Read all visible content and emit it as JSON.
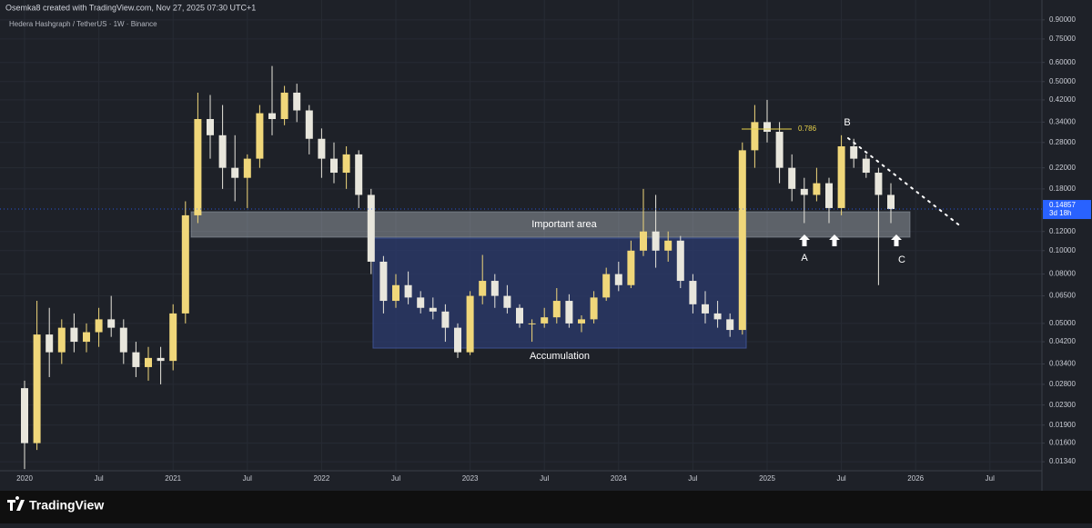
{
  "header": {
    "credit": "Osemka8 created with TradingView.com, Nov 27, 2025 07:30 UTC+1",
    "brand": "TradingView"
  },
  "chart_data": {
    "type": "candlestick",
    "title": "Hedera Hashgraph / TetherUS · 1W · Binance",
    "categories": [
      "2020",
      null,
      null,
      null,
      null,
      null,
      "Jul",
      null,
      null,
      null,
      null,
      null,
      "2021",
      null,
      null,
      null,
      null,
      null,
      "Jul",
      null,
      null,
      null,
      null,
      null,
      "2022",
      null,
      null,
      null,
      null,
      null,
      "Jul",
      null,
      null,
      null,
      null,
      null,
      "2023",
      null,
      null,
      null,
      null,
      null,
      "Jul",
      null,
      null,
      null,
      null,
      null,
      "2024",
      null,
      null,
      null,
      null,
      null,
      "Jul",
      null,
      null,
      null,
      null,
      null,
      "2025",
      null,
      null,
      null,
      null,
      null,
      "Jul",
      null,
      null,
      null,
      null,
      null,
      "2026",
      null,
      null,
      null,
      null,
      null,
      "Jul",
      null,
      null,
      null,
      null
    ],
    "open": [
      0.027,
      0.016,
      0.045,
      0.038,
      0.048,
      0.042,
      0.046,
      0.052,
      0.048,
      0.038,
      0.033,
      0.036,
      0.035,
      0.055,
      0.14,
      0.35,
      0.3,
      0.22,
      0.2,
      0.24,
      0.37,
      0.35,
      0.45,
      0.38,
      0.29,
      0.24,
      0.21,
      0.25,
      0.17,
      0.09,
      0.062,
      0.072,
      0.064,
      0.058,
      0.056,
      0.048,
      0.038,
      0.065,
      0.075,
      0.065,
      0.058,
      0.05,
      0.05,
      0.053,
      0.062,
      0.05,
      0.052,
      0.064,
      0.08,
      0.072,
      0.1,
      0.12,
      0.1,
      0.11,
      0.075,
      0.06,
      0.055,
      0.052,
      0.047,
      0.26,
      0.34,
      0.31,
      0.22,
      0.18,
      0.17,
      0.19,
      0.15,
      0.27,
      0.24,
      0.21,
      0.17,
      null,
      null,
      null,
      null,
      null,
      null,
      null,
      null,
      null,
      null,
      null,
      null
    ],
    "high": [
      0.029,
      0.062,
      0.058,
      0.052,
      0.055,
      0.05,
      0.058,
      0.065,
      0.052,
      0.042,
      0.04,
      0.04,
      0.06,
      0.16,
      0.45,
      0.44,
      0.4,
      0.3,
      0.25,
      0.4,
      0.58,
      0.48,
      0.49,
      0.4,
      0.32,
      0.28,
      0.27,
      0.26,
      0.18,
      0.095,
      0.08,
      0.082,
      0.068,
      0.064,
      0.06,
      0.05,
      0.068,
      0.096,
      0.08,
      0.072,
      0.06,
      0.052,
      0.058,
      0.07,
      0.066,
      0.054,
      0.068,
      0.085,
      0.09,
      0.11,
      0.18,
      0.17,
      0.12,
      0.115,
      0.08,
      0.068,
      0.062,
      0.055,
      0.28,
      0.4,
      0.42,
      0.34,
      0.25,
      0.2,
      0.22,
      0.2,
      0.3,
      0.29,
      0.25,
      0.22,
      0.19,
      null,
      null,
      null,
      null,
      null,
      null,
      null,
      null,
      null,
      null,
      null,
      null
    ],
    "low": [
      0.0125,
      0.015,
      0.03,
      0.034,
      0.038,
      0.038,
      0.04,
      0.044,
      0.034,
      0.03,
      0.029,
      0.028,
      0.032,
      0.05,
      0.13,
      0.24,
      0.18,
      0.16,
      0.15,
      0.22,
      0.3,
      0.33,
      0.34,
      0.25,
      0.2,
      0.19,
      0.18,
      0.15,
      0.08,
      0.055,
      0.058,
      0.06,
      0.055,
      0.052,
      0.042,
      0.036,
      0.037,
      0.06,
      0.058,
      0.055,
      0.048,
      0.042,
      0.048,
      0.05,
      0.048,
      0.046,
      0.05,
      0.062,
      0.068,
      0.07,
      0.095,
      0.085,
      0.09,
      0.07,
      0.055,
      0.05,
      0.048,
      0.044,
      0.045,
      0.22,
      0.28,
      0.19,
      0.16,
      0.13,
      0.16,
      0.13,
      0.14,
      0.22,
      0.2,
      0.072,
      0.13,
      null,
      null,
      null,
      null,
      null,
      null,
      null,
      null,
      null,
      null,
      null,
      null
    ],
    "close": [
      0.016,
      0.045,
      0.038,
      0.048,
      0.042,
      0.046,
      0.052,
      0.048,
      0.038,
      0.033,
      0.036,
      0.035,
      0.055,
      0.14,
      0.35,
      0.3,
      0.22,
      0.2,
      0.24,
      0.37,
      0.35,
      0.45,
      0.38,
      0.29,
      0.24,
      0.21,
      0.25,
      0.17,
      0.09,
      0.062,
      0.072,
      0.064,
      0.058,
      0.056,
      0.048,
      0.038,
      0.065,
      0.075,
      0.065,
      0.058,
      0.05,
      0.05,
      0.053,
      0.062,
      0.05,
      0.052,
      0.064,
      0.08,
      0.072,
      0.1,
      0.12,
      0.1,
      0.11,
      0.075,
      0.06,
      0.055,
      0.052,
      0.047,
      0.26,
      0.34,
      0.31,
      0.22,
      0.18,
      0.17,
      0.19,
      0.15,
      0.27,
      0.24,
      0.21,
      0.17,
      0.14857,
      null,
      null,
      null,
      null,
      null,
      null,
      null,
      null,
      null,
      null,
      null,
      null
    ],
    "up_color": "#f0d77a",
    "down_color": "#e8e6dc",
    "log_scale": true,
    "grid": true,
    "ylim": [
      0.0123,
      0.98
    ],
    "yticks": [
      {
        "value": 0.9,
        "label": "0.90000"
      },
      {
        "value": 0.75,
        "label": "0.75000"
      },
      {
        "value": 0.6,
        "label": "0.60000"
      },
      {
        "value": 0.5,
        "label": "0.50000"
      },
      {
        "value": 0.42,
        "label": "0.42000"
      },
      {
        "value": 0.34,
        "label": "0.34000"
      },
      {
        "value": 0.28,
        "label": "0.28000"
      },
      {
        "value": 0.22,
        "label": "0.22000"
      },
      {
        "value": 0.18,
        "label": "0.18000"
      },
      {
        "value": 0.12,
        "label": "0.12000"
      },
      {
        "value": 0.1,
        "label": "0.10000"
      },
      {
        "value": 0.08,
        "label": "0.08000"
      },
      {
        "value": 0.065,
        "label": "0.06500"
      },
      {
        "value": 0.05,
        "label": "0.05000"
      },
      {
        "value": 0.042,
        "label": "0.04200"
      },
      {
        "value": 0.034,
        "label": "0.03400"
      },
      {
        "value": 0.028,
        "label": "0.02800"
      },
      {
        "value": 0.023,
        "label": "0.02300"
      },
      {
        "value": 0.019,
        "label": "0.01900"
      },
      {
        "value": 0.016,
        "label": "0.01600"
      },
      {
        "value": 0.0134,
        "label": "0.01340"
      }
    ],
    "last_price": {
      "value": 0.14857,
      "label": "0.14857",
      "countdown": "3d 18h",
      "color": "#2962ff"
    },
    "annotations": {
      "important_area": "Important area",
      "accumulation": "Accumulation",
      "fib": "0.786",
      "a": "A",
      "b": "B",
      "c": "C"
    }
  }
}
